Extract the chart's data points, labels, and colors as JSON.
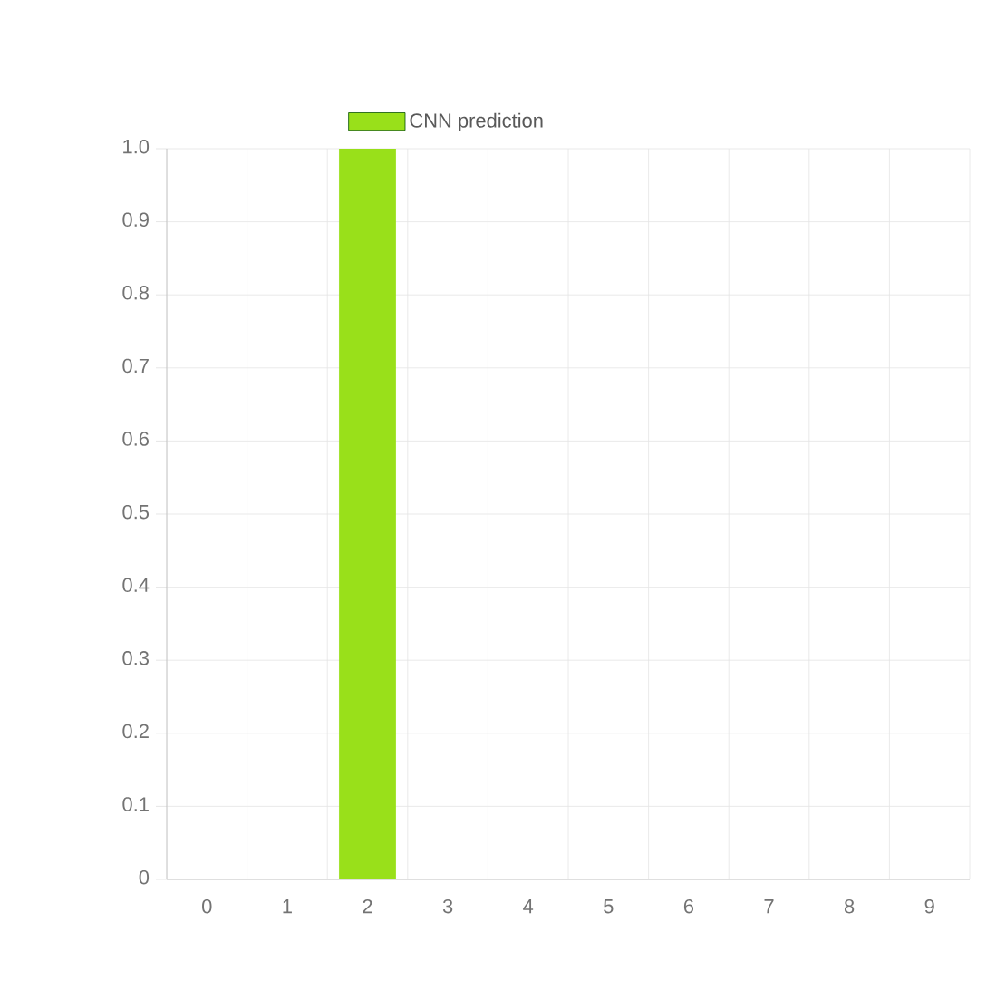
{
  "chart_data": {
    "type": "bar",
    "categories": [
      "0",
      "1",
      "2",
      "3",
      "4",
      "5",
      "6",
      "7",
      "8",
      "9"
    ],
    "series": [
      {
        "name": "CNN prediction",
        "color": "#99e01a",
        "values": [
          0,
          0,
          1.0,
          0,
          0,
          0,
          0,
          0,
          0,
          0
        ]
      }
    ],
    "ylim": [
      0,
      1.0
    ],
    "yticks": [
      0,
      0.1,
      0.2,
      0.3,
      0.4,
      0.5,
      0.6,
      0.7,
      0.8,
      0.9,
      {
        "value": 1.0,
        "label": "1.0"
      }
    ],
    "grid": true,
    "legend": "top"
  }
}
